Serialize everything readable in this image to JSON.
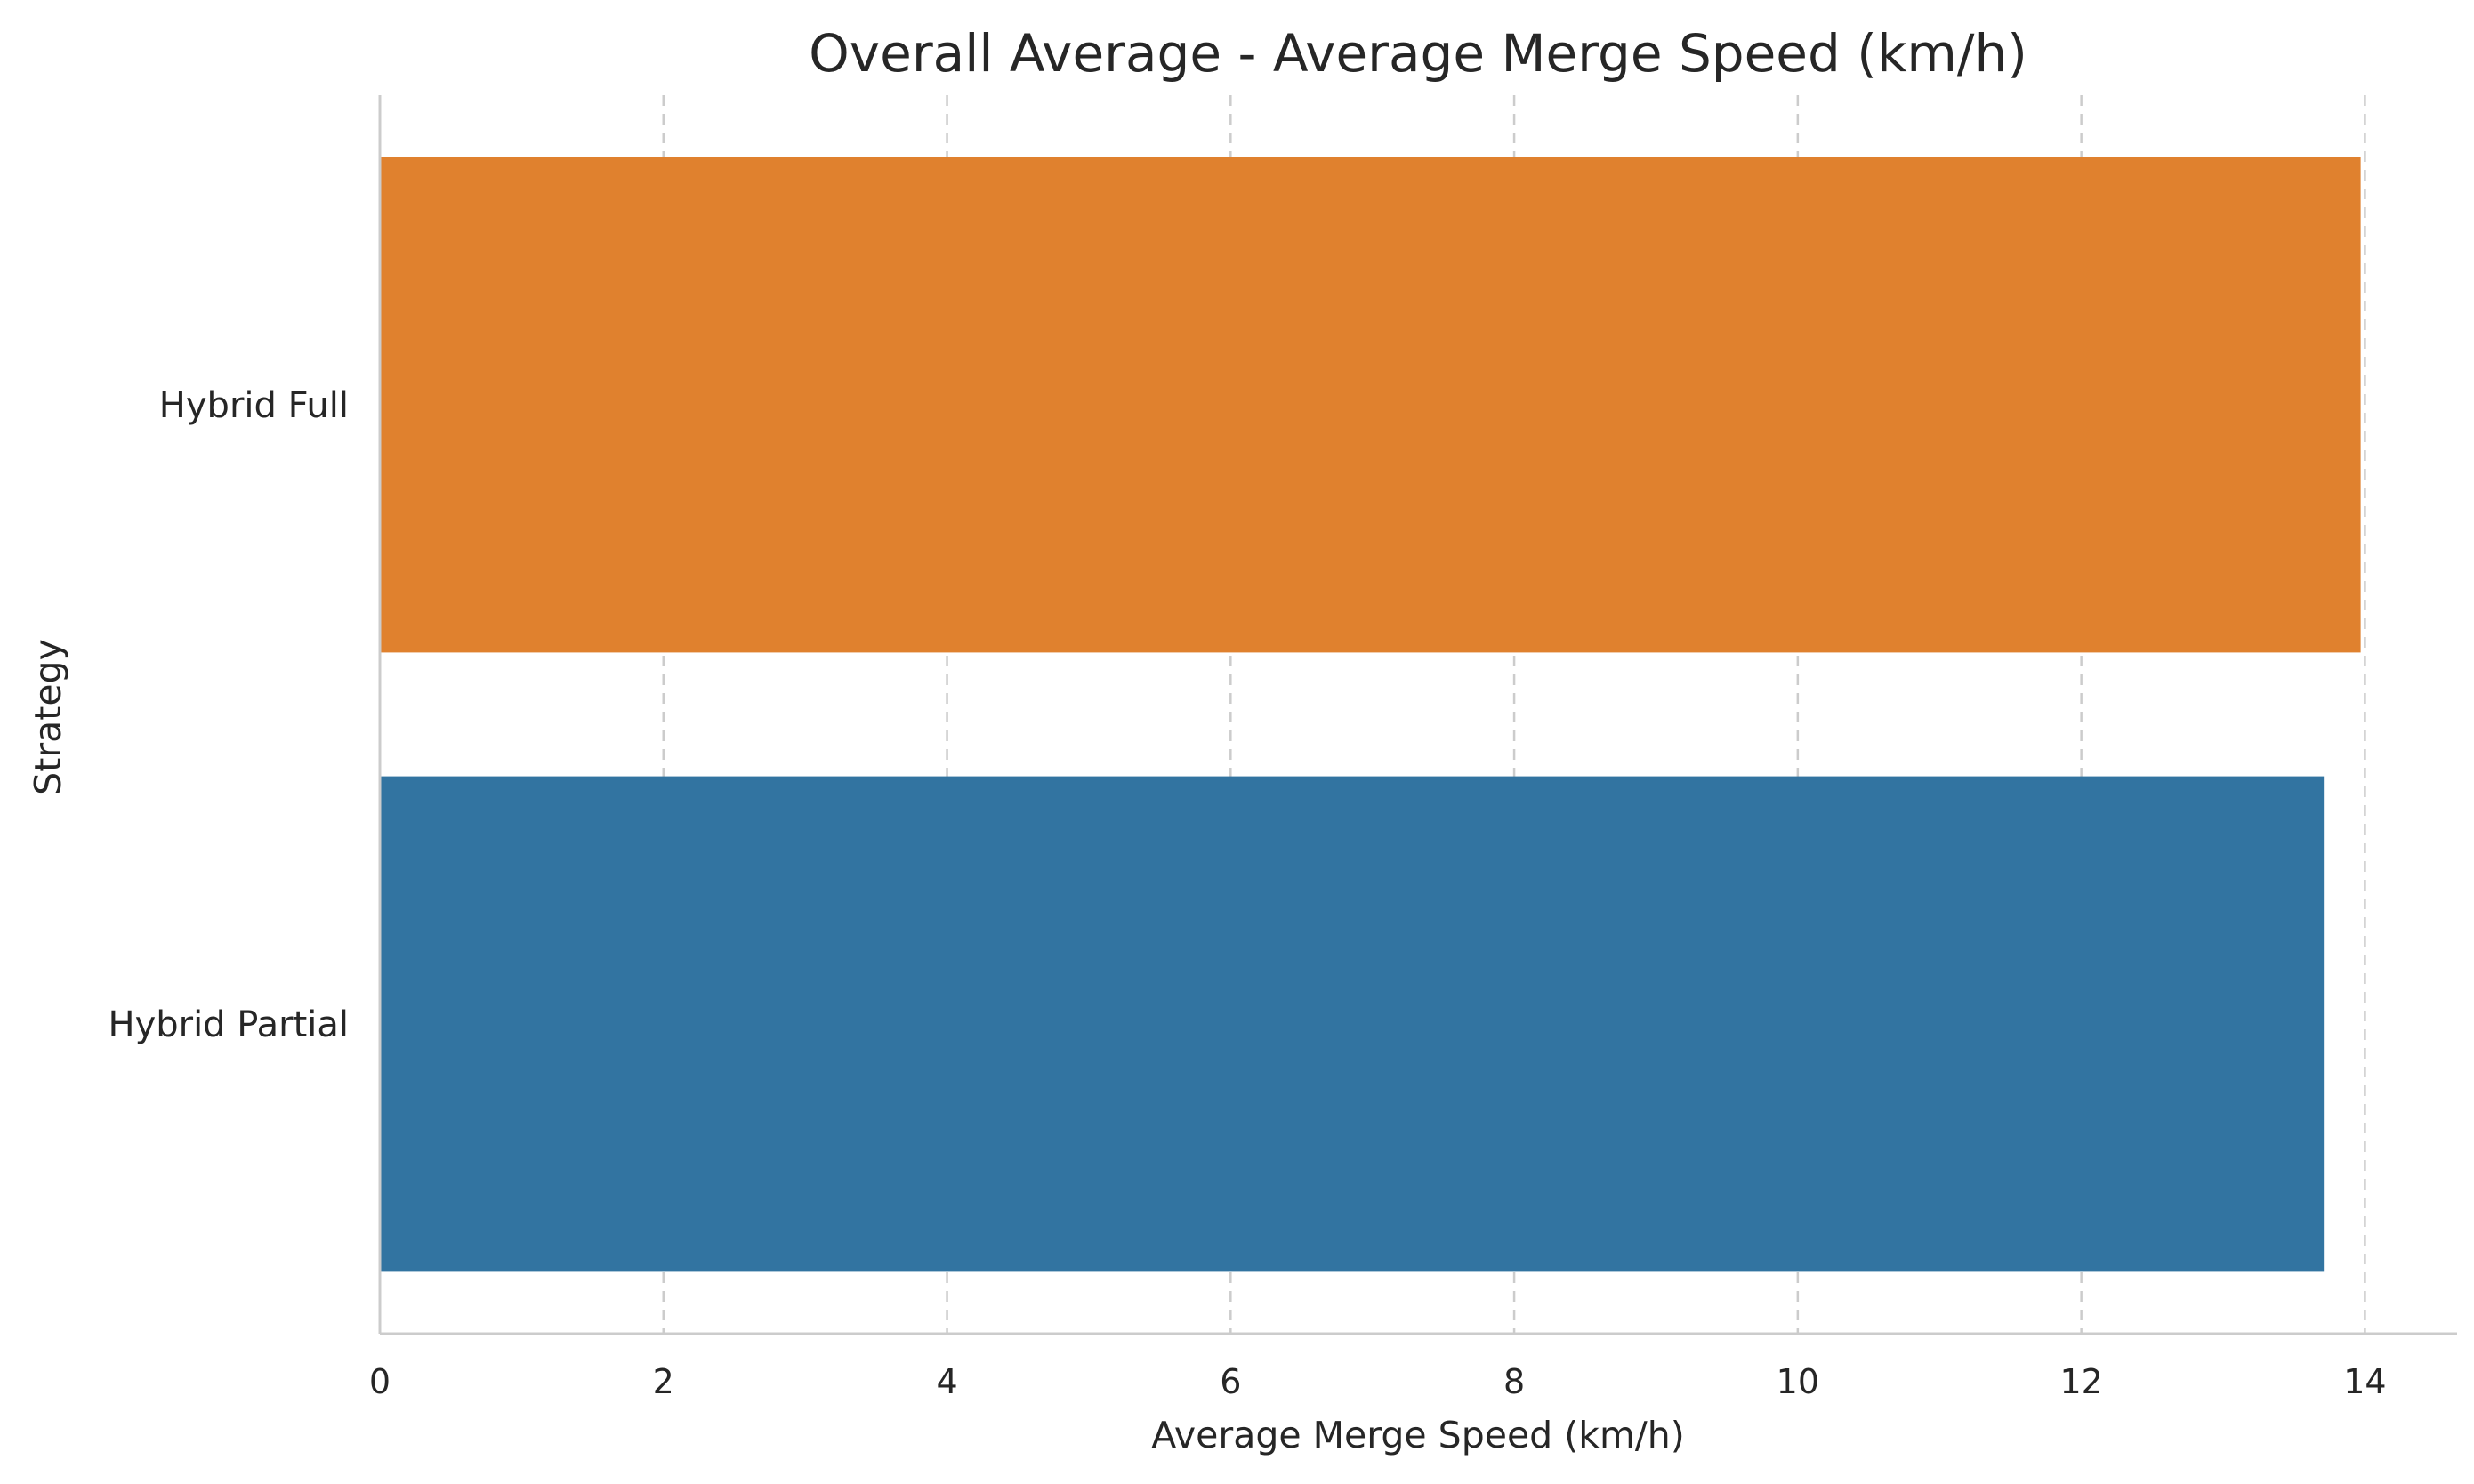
{
  "chart_data": {
    "type": "bar",
    "orientation": "horizontal",
    "title": "Overall Average - Average Merge Speed (km/h)",
    "xlabel": "Average Merge Speed (km/h)",
    "ylabel": "Strategy",
    "categories": [
      "Hybrid Full",
      "Hybrid Partial"
    ],
    "values": [
      13.97,
      13.71
    ],
    "colors": [
      "#e0812e",
      "#3274a1"
    ],
    "xlim": [
      0,
      14.65
    ],
    "xticks": [
      0,
      2,
      4,
      6,
      8,
      10,
      12,
      14
    ],
    "xtick_labels": [
      "0",
      "2",
      "4",
      "6",
      "8",
      "10",
      "12",
      "14"
    ],
    "grid": "x-dashed",
    "legend": "none"
  }
}
